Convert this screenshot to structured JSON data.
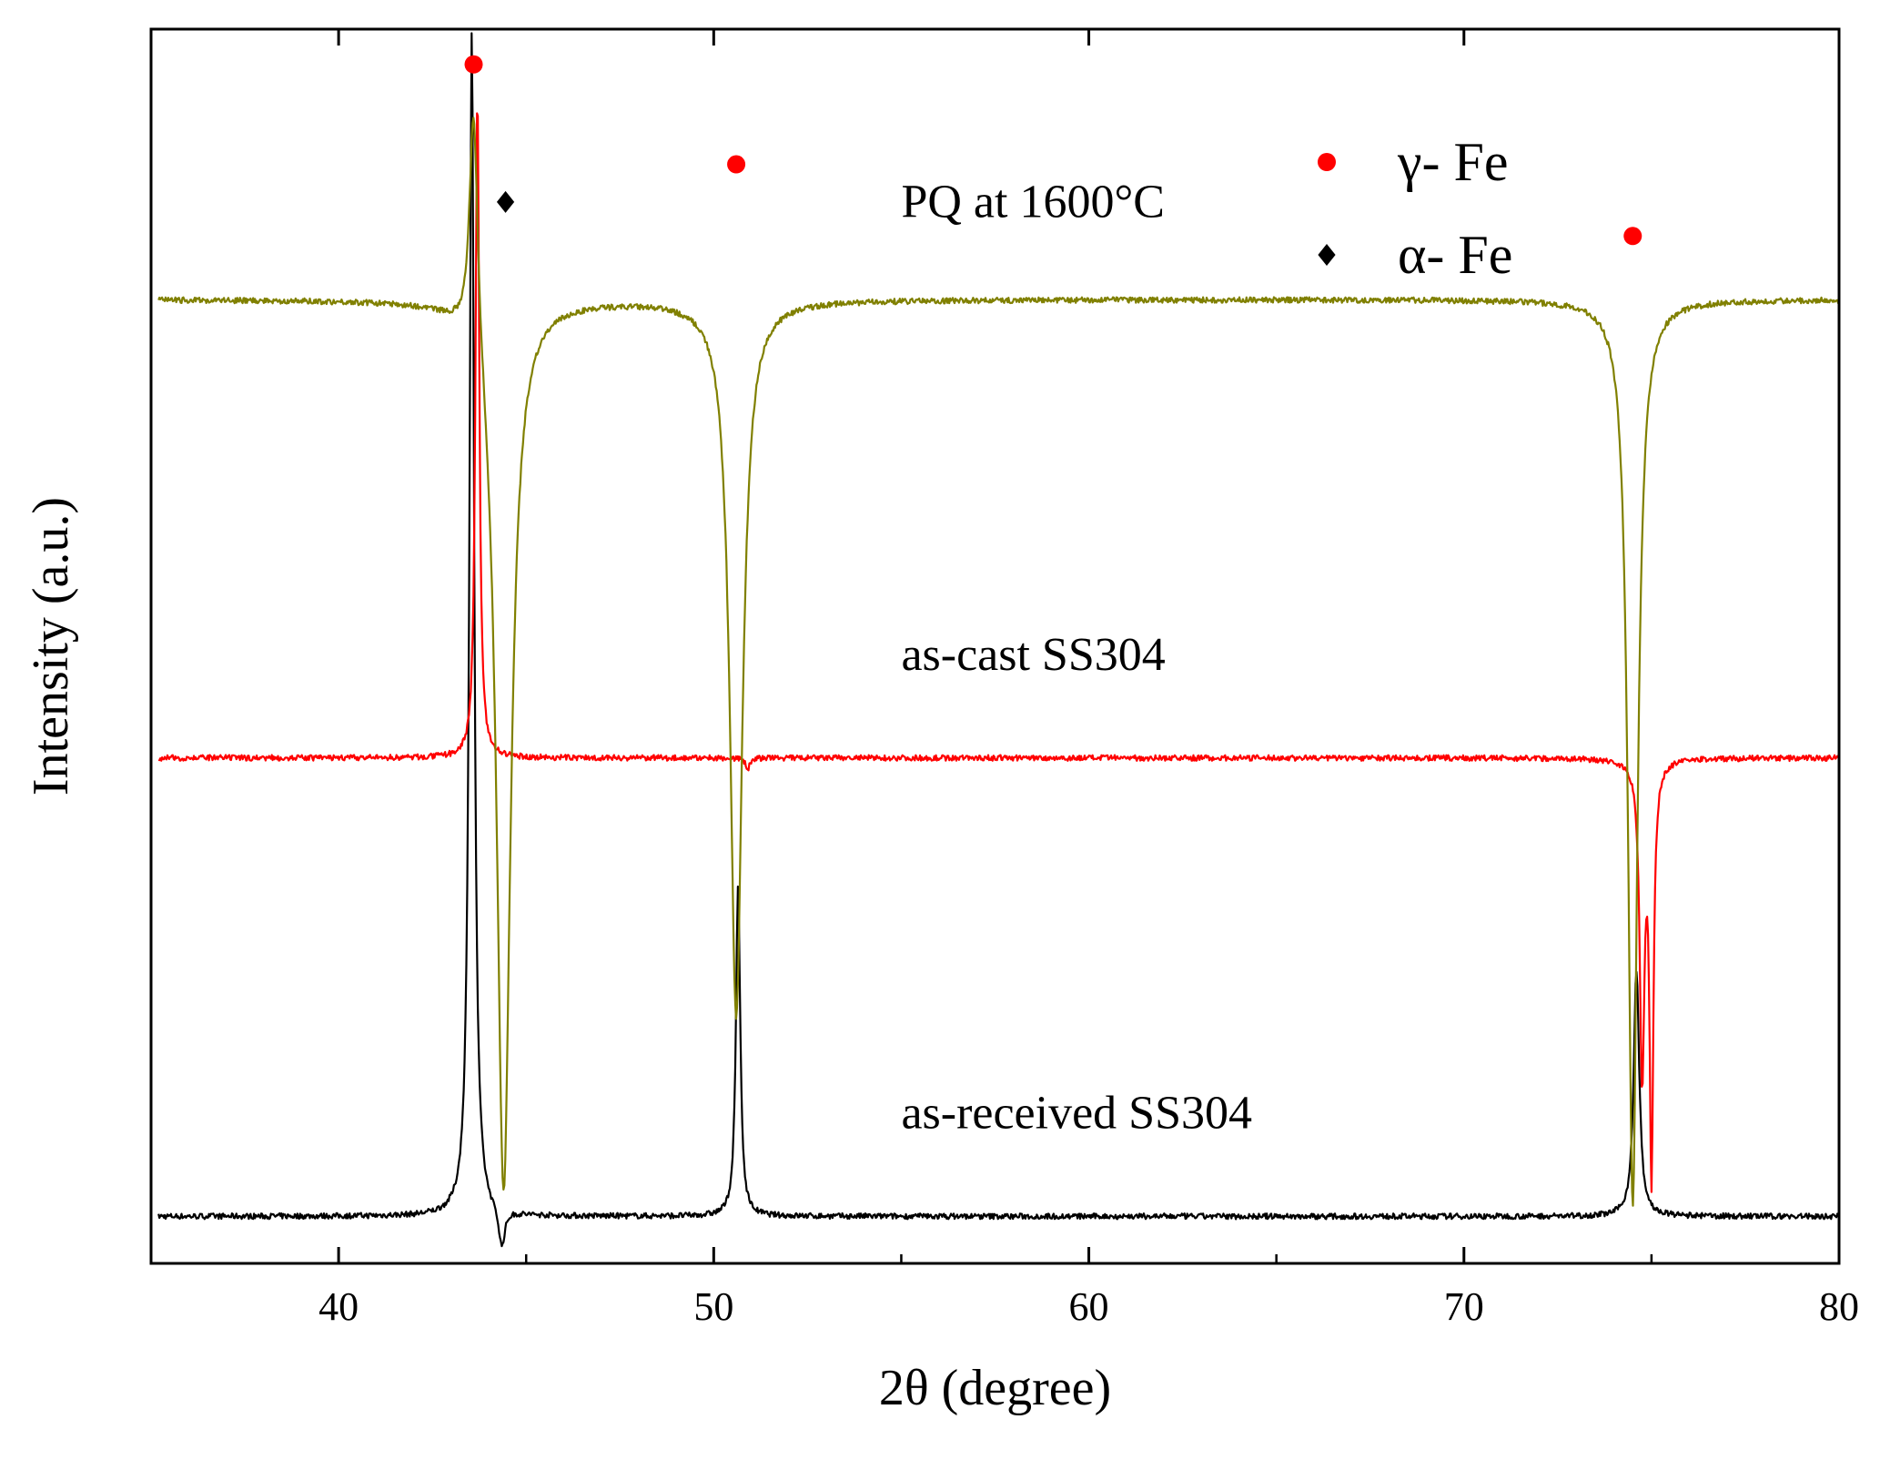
{
  "chart_data": {
    "type": "line",
    "title": "",
    "xlabel": "2θ (degree)",
    "ylabel": "Intensity (a.u.)",
    "xlim": [
      35,
      80
    ],
    "ylim": [
      0,
      10.5
    ],
    "x_ticks": [
      {
        "value": 40,
        "label": "40"
      },
      {
        "value": 50,
        "label": "50"
      },
      {
        "value": 60,
        "label": "60"
      },
      {
        "value": 70,
        "label": "70"
      },
      {
        "value": 80,
        "label": "80"
      }
    ],
    "grid": false,
    "series": [
      {
        "name": "as-received SS304",
        "color": "#000000",
        "baseline": 0.4,
        "noise": 0.012,
        "peaks": [
          {
            "x": 43.55,
            "height": 10.5,
            "width": 0.15
          },
          {
            "x": 44.35,
            "height": 0.06,
            "width": 0.2
          },
          {
            "x": 50.65,
            "height": 3.2,
            "width": 0.14
          },
          {
            "x": 74.6,
            "height": 2.5,
            "width": 0.18
          }
        ]
      },
      {
        "name": "as-cast SS304",
        "color": "#ff0000",
        "baseline": 4.3,
        "noise": 0.012,
        "peaks": [
          {
            "x": 43.7,
            "height": 10.0,
            "width": 0.12
          },
          {
            "x": 50.9,
            "height": 4.2,
            "width": 0.13
          },
          {
            "x": 74.75,
            "height": 1.65,
            "width": 0.15
          },
          {
            "x": 75.0,
            "height": 0.8,
            "width": 0.12
          }
        ]
      },
      {
        "name": "PQ at 1600°C",
        "color": "#808000",
        "baseline": 8.2,
        "noise": 0.012,
        "peaks": [
          {
            "x": 43.6,
            "height": 10.3,
            "width": 0.28
          },
          {
            "x": 44.4,
            "height": 0.55,
            "width": 0.45
          },
          {
            "x": 50.6,
            "height": 2.1,
            "width": 0.4
          },
          {
            "x": 74.5,
            "height": 0.5,
            "width": 0.3
          }
        ]
      }
    ],
    "series_labels": [
      {
        "text": "as-received SS304",
        "x": 55.0,
        "y": 1.15
      },
      {
        "text": "as-cast SS304",
        "x": 55.0,
        "y": 5.05
      },
      {
        "text": "PQ at 1600°C",
        "x": 55.0,
        "y": 8.9
      }
    ],
    "phase_markers": [
      {
        "phase": "γ- Fe",
        "symbol": "circle",
        "color": "#ff0000",
        "x": 43.6,
        "y": 10.2
      },
      {
        "phase": "α- Fe",
        "symbol": "diamond",
        "color": "#000000",
        "x": 44.45,
        "y": 9.03
      },
      {
        "phase": "γ- Fe",
        "symbol": "circle",
        "color": "#ff0000",
        "x": 50.6,
        "y": 9.35
      },
      {
        "phase": "γ- Fe",
        "symbol": "circle",
        "color": "#ff0000",
        "x": 74.5,
        "y": 8.74
      }
    ],
    "legend": {
      "position": "top-right",
      "entries": [
        {
          "symbol": "circle",
          "color": "#ff0000",
          "label": "γ- Fe"
        },
        {
          "symbol": "diamond",
          "color": "#000000",
          "label": "α- Fe"
        }
      ]
    }
  }
}
